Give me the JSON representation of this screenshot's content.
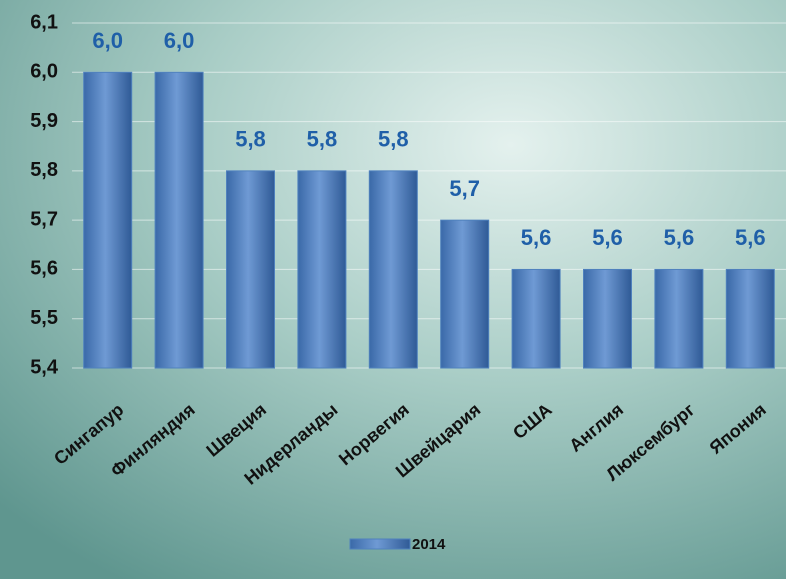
{
  "chart_data": {
    "type": "bar",
    "categories": [
      "Сингапур",
      "Финляндия",
      "Швеция",
      "Нидерланды",
      "Норвегия",
      "Швейцария",
      "США",
      "Англия",
      "Люксембург",
      "Япония"
    ],
    "series": [
      {
        "name": "2014",
        "color": "#4f81bd",
        "values": [
          6.0,
          6.0,
          5.8,
          5.8,
          5.8,
          5.7,
          5.6,
          5.6,
          5.6,
          5.6
        ],
        "value_labels": [
          "6,0",
          "6,0",
          "5,8",
          "5,8",
          "5,8",
          "5,7",
          "5,6",
          "5,6",
          "5,6",
          "5,6"
        ]
      }
    ],
    "ylim": [
      5.4,
      6.1
    ],
    "yticks": [
      {
        "value": 5.4,
        "label": "5,4"
      },
      {
        "value": 5.5,
        "label": "5,5"
      },
      {
        "value": 5.6,
        "label": "5,6"
      },
      {
        "value": 5.7,
        "label": "5,7"
      },
      {
        "value": 5.8,
        "label": "5,8"
      },
      {
        "value": 5.9,
        "label": "5,9"
      },
      {
        "value": 6.0,
        "label": "6,0"
      },
      {
        "value": 6.1,
        "label": "6,1"
      }
    ],
    "grid": true,
    "legend": "bottom"
  }
}
